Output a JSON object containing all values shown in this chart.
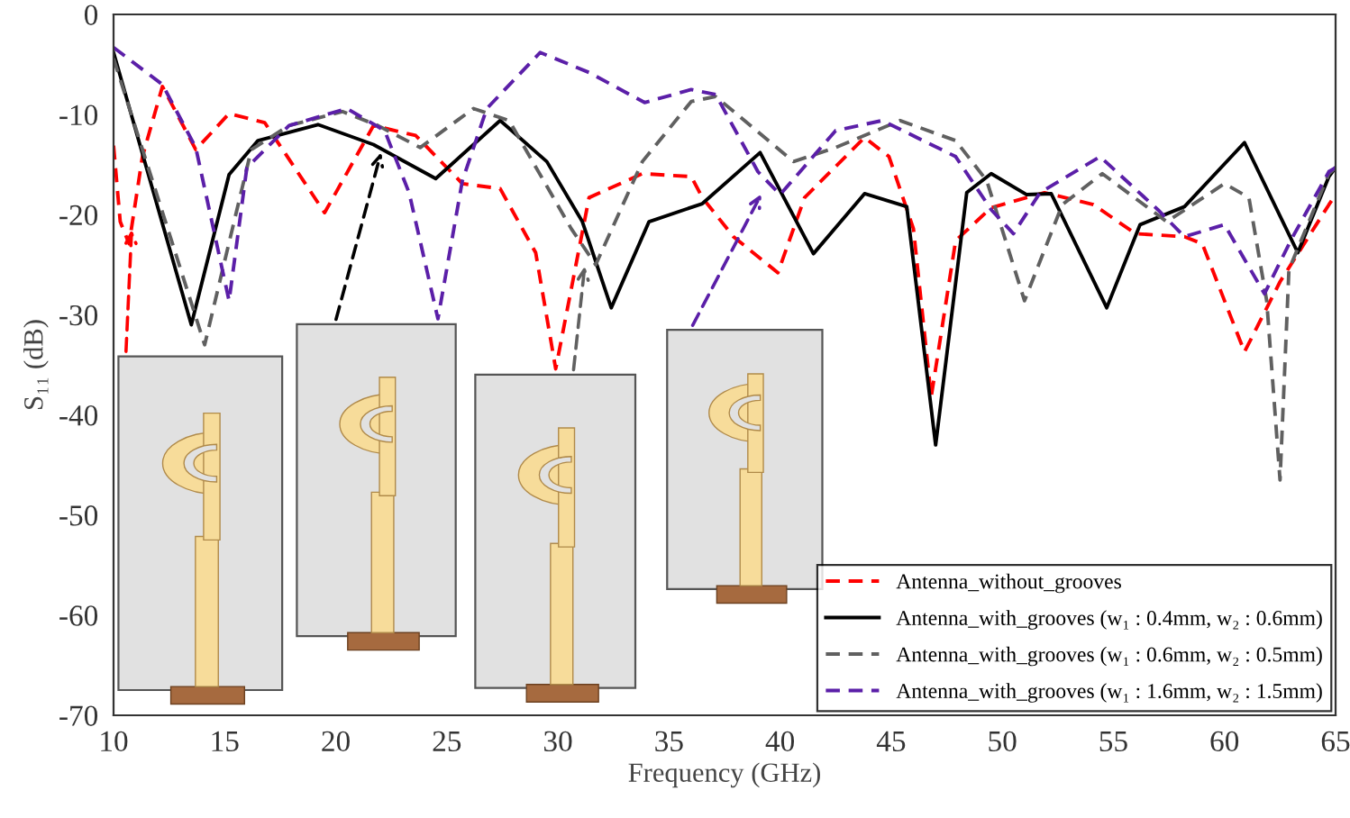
{
  "chart_data": {
    "type": "line",
    "xlabel": "Frequency (GHz)",
    "ylabel": "S₁₁ (dB)",
    "xlim": [
      10,
      65
    ],
    "ylim": [
      -70,
      0
    ],
    "xticks": [
      10,
      15,
      20,
      25,
      30,
      35,
      40,
      45,
      50,
      55,
      60,
      65
    ],
    "yticks": [
      -70,
      -60,
      -50,
      -40,
      -30,
      -20,
      -10,
      0
    ],
    "grid": false,
    "legend": "bottom right",
    "marker": "none",
    "series": [
      {
        "name": "Antenna_without_grooves",
        "color": "#ff0000",
        "line_style": "dashed",
        "x": [
          10,
          10.3,
          10.7,
          11.3,
          12.2,
          13.7,
          15.2,
          16.8,
          19.5,
          21.7,
          23.6,
          25.7,
          27.4,
          29,
          29.9,
          31.4,
          33.8,
          36,
          36.5,
          37.9,
          39.9,
          41.1,
          43.8,
          44.9,
          46,
          46.8,
          47.9,
          49.5,
          51.9,
          54.1,
          56,
          58.2,
          59,
          60.9,
          62.5,
          64.7,
          65
        ],
        "values": [
          -13.1,
          -20.7,
          -22.9,
          -14.2,
          -7.2,
          -13.5,
          -9.9,
          -10.8,
          -19.8,
          -11.1,
          -12.1,
          -16.9,
          -17.4,
          -23.8,
          -35.4,
          -18.3,
          -15.9,
          -16.2,
          -18.3,
          -22.2,
          -25.8,
          -18.3,
          -12.3,
          -14.2,
          -21.4,
          -38.2,
          -22.6,
          -19.3,
          -17.8,
          -19,
          -21.9,
          -22.2,
          -22.9,
          -33.7,
          -26.7,
          -19,
          -18
        ]
      },
      {
        "name": "Antenna_with_grooves (w₁ : 0.4mm, w₂ : 0.6mm)",
        "color": "#000000",
        "line_style": "solid",
        "x": [
          10,
          13.5,
          15.2,
          16.5,
          19.2,
          21.7,
          24.5,
          27.4,
          29.5,
          31.1,
          32.4,
          34.1,
          36.5,
          39.1,
          41.5,
          43.8,
          45.7,
          47,
          48.4,
          49.5,
          51.1,
          52.2,
          54.7,
          56.2,
          58.2,
          60.9,
          63.3,
          64.7,
          65
        ],
        "values": [
          -3.8,
          -31,
          -16,
          -12.6,
          -11,
          -13,
          -16.4,
          -10.6,
          -14.7,
          -20.7,
          -29.3,
          -20.7,
          -18.9,
          -13.8,
          -23.9,
          -17.9,
          -19.2,
          -43,
          -17.8,
          -15.9,
          -18,
          -17.9,
          -29.3,
          -21,
          -19.2,
          -12.8,
          -23.8,
          -16.2,
          -15.3
        ]
      },
      {
        "name": "Antenna_with_grooves (w₁ : 0.6mm, w₂ : 0.5mm)",
        "color": "#606060",
        "line_style": "dashed",
        "x": [
          10,
          14.1,
          16.2,
          17.9,
          20.3,
          21.9,
          23.8,
          26.2,
          27.8,
          30.6,
          31.7,
          33.8,
          36,
          37.1,
          40.6,
          42.5,
          45.4,
          47.9,
          49.3,
          51,
          52.7,
          54.5,
          57.4,
          60,
          61.1,
          61.9,
          62.5,
          62.9,
          64.7,
          65
        ],
        "values": [
          -4.4,
          -33,
          -13.5,
          -11.1,
          -9.7,
          -11.1,
          -13.3,
          -9.4,
          -10.6,
          -21.4,
          -25,
          -14.7,
          -8.7,
          -8.2,
          -14.7,
          -13.3,
          -10.6,
          -12.6,
          -16.6,
          -28.6,
          -19,
          -15.9,
          -20.7,
          -16.9,
          -18.3,
          -28.6,
          -46.5,
          -25.5,
          -15.9,
          -15.3
        ]
      },
      {
        "name": "Antenna_with_grooves (w₁ : 1.6mm, w₂ : 1.5mm)",
        "color": "#5b1fa8",
        "line_style": "dashed",
        "x": [
          10,
          12.2,
          13.7,
          15.2,
          16,
          17.9,
          20.5,
          22.2,
          23.3,
          24.6,
          25.7,
          26.8,
          29.2,
          31.4,
          33.9,
          36,
          37.1,
          39,
          40,
          42.5,
          44.6,
          47.9,
          49.5,
          50.5,
          51.7,
          54.4,
          57,
          58.2,
          60,
          61.8,
          63,
          64.7,
          65
        ],
        "values": [
          -3.3,
          -7,
          -13.3,
          -28.6,
          -15.3,
          -11.1,
          -9.4,
          -11.6,
          -17.8,
          -30.4,
          -16.6,
          -9.4,
          -3.8,
          -5.8,
          -8.8,
          -7.5,
          -8,
          -15.7,
          -18,
          -11.6,
          -10.6,
          -14.2,
          -19.5,
          -21.9,
          -17.8,
          -14.2,
          -19.5,
          -22.2,
          -21,
          -27.9,
          -22.5,
          -15.7,
          -15.3
        ]
      }
    ]
  }
}
